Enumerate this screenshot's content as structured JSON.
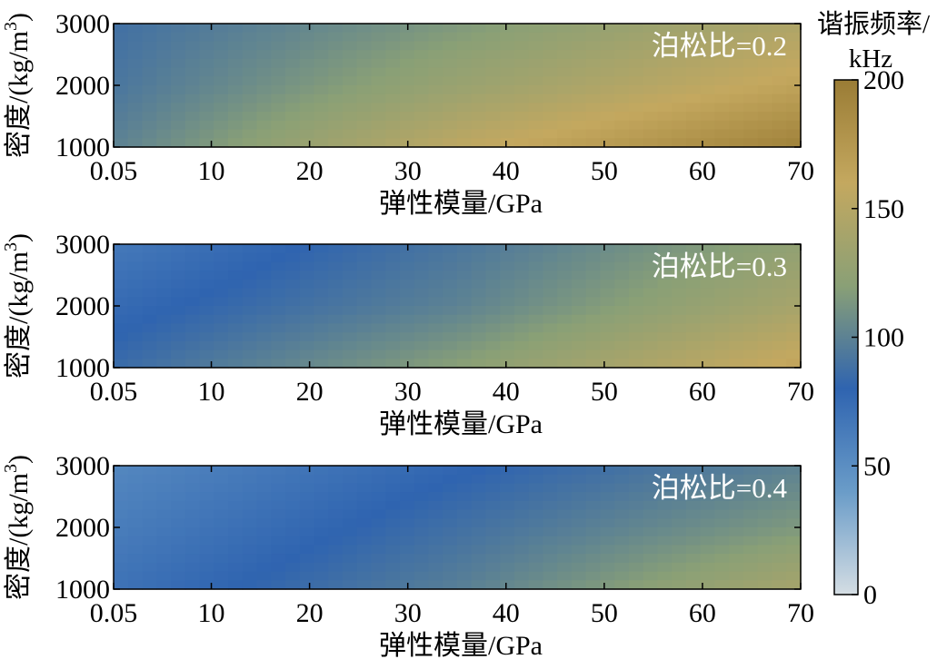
{
  "colors": {
    "colormap": [
      "#d4dde3",
      "#6a9cc8",
      "#2f64b0",
      "#8aa076",
      "#c4a85f",
      "#9a7c35"
    ],
    "axis": "#000000",
    "annotation_text": "#ffffff"
  },
  "colorbar": {
    "title_line1": "谐振频率/",
    "title_line2": "kHz",
    "ticks": [
      "0",
      "50",
      "100",
      "150",
      "200"
    ],
    "range": [
      0,
      200
    ]
  },
  "chart_data": [
    {
      "type": "heatmap",
      "annotation": "泊松比=0.2",
      "poisson_ratio": 0.2,
      "xlabel": "弹性模量/GPa",
      "ylabel_main": "密度/(kg/m",
      "ylabel_sup": "3",
      "ylabel_tail": ")",
      "xlim": [
        0.05,
        70
      ],
      "ylim": [
        1000,
        3000
      ],
      "xticks": [
        "0.05",
        "10",
        "20",
        "30",
        "40",
        "50",
        "60",
        "70"
      ],
      "yticks": [
        "1000",
        "2000",
        "3000"
      ],
      "zlim": [
        0,
        200
      ],
      "sample_x": [
        0.05,
        35,
        70
      ],
      "sample_y": [
        1000,
        2000,
        3000
      ],
      "sample_z": [
        [
          100,
          155,
          195
        ],
        [
          92,
          130,
          165
        ],
        [
          88,
          115,
          145
        ]
      ]
    },
    {
      "type": "heatmap",
      "annotation": "泊松比=0.3",
      "poisson_ratio": 0.3,
      "xlabel": "弹性模量/GPa",
      "ylabel_main": "密度/(kg/m",
      "ylabel_sup": "3",
      "ylabel_tail": ")",
      "xlim": [
        0.05,
        70
      ],
      "ylim": [
        1000,
        3000
      ],
      "xticks": [
        "0.05",
        "10",
        "20",
        "30",
        "40",
        "50",
        "60",
        "70"
      ],
      "yticks": [
        "1000",
        "2000",
        "3000"
      ],
      "zlim": [
        0,
        200
      ],
      "sample_x": [
        0.05,
        35,
        70
      ],
      "sample_y": [
        1000,
        2000,
        3000
      ],
      "sample_z": [
        [
          85,
          120,
          165
        ],
        [
          75,
          100,
          140
        ],
        [
          65,
          92,
          125
        ]
      ]
    },
    {
      "type": "heatmap",
      "annotation": "泊松比=0.4",
      "poisson_ratio": 0.4,
      "xlabel": "弹性模量/GPa",
      "ylabel_main": "密度/(kg/m",
      "ylabel_sup": "3",
      "ylabel_tail": ")",
      "xlim": [
        0.05,
        70
      ],
      "ylim": [
        1000,
        3000
      ],
      "xticks": [
        "0.05",
        "10",
        "20",
        "30",
        "40",
        "50",
        "60",
        "70"
      ],
      "yticks": [
        "1000",
        "2000",
        "3000"
      ],
      "zlim": [
        0,
        200
      ],
      "sample_x": [
        0.05,
        35,
        70
      ],
      "sample_y": [
        1000,
        2000,
        3000
      ],
      "sample_z": [
        [
          70,
          98,
          140
        ],
        [
          62,
          88,
          115
        ],
        [
          55,
          78,
          100
        ]
      ]
    }
  ]
}
